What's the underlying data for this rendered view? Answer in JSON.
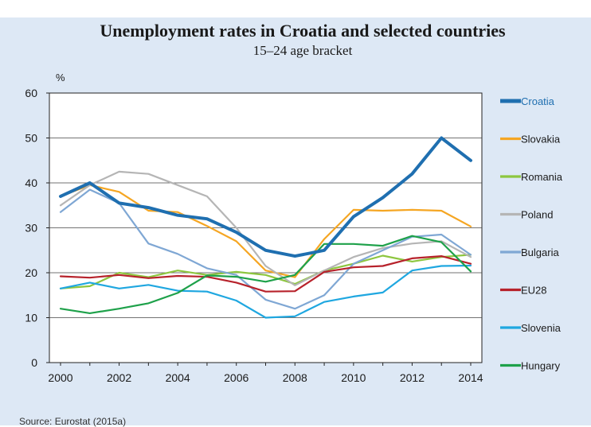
{
  "chart_data": {
    "type": "line",
    "title": "Unemployment rates in Croatia and selected countries",
    "subtitle": "15–24 age bracket",
    "ylabel": "%",
    "xlabel": "",
    "ylim": [
      0,
      60
    ],
    "xlim": [
      2000,
      2014
    ],
    "y_ticks": [
      "0",
      "10",
      "20",
      "30",
      "40",
      "50",
      "60"
    ],
    "x_ticks": [
      "2000",
      "2002",
      "2004",
      "2006",
      "2008",
      "2010",
      "2012",
      "2014"
    ],
    "grid": "horizontal",
    "legend_position": "right",
    "x": [
      2000,
      2001,
      2002,
      2003,
      2004,
      2005,
      2006,
      2007,
      2008,
      2009,
      2010,
      2011,
      2012,
      2013,
      2014
    ],
    "series": [
      {
        "name": "Croatia",
        "color": "#1f6fb0",
        "width": 4,
        "values": [
          37.0,
          40.0,
          35.5,
          34.5,
          32.8,
          32.0,
          29.0,
          25.0,
          23.7,
          25.0,
          32.5,
          36.7,
          42.0,
          50.0,
          45.0
        ]
      },
      {
        "name": "Slovakia",
        "color": "#f5a623",
        "width": 2.2,
        "values": [
          37.0,
          39.5,
          38.0,
          33.8,
          33.5,
          30.4,
          27.0,
          20.5,
          19.0,
          27.5,
          34.0,
          33.8,
          34.0,
          33.8,
          30.3
        ]
      },
      {
        "name": "Romania",
        "color": "#8dc63f",
        "width": 2.2,
        "values": [
          16.5,
          17.0,
          20.0,
          19.0,
          20.5,
          19.5,
          20.2,
          19.5,
          17.5,
          20.5,
          22.0,
          23.8,
          22.5,
          23.5,
          24.0
        ]
      },
      {
        "name": "Poland",
        "color": "#b5b5b5",
        "width": 2.2,
        "values": [
          35.0,
          39.5,
          42.5,
          42.0,
          39.5,
          37.0,
          30.0,
          21.5,
          17.2,
          20.5,
          23.5,
          25.5,
          26.5,
          27.0,
          23.5
        ]
      },
      {
        "name": "Bulgaria",
        "color": "#7fa7d4",
        "width": 2.2,
        "values": [
          33.5,
          38.5,
          35.5,
          26.5,
          24.2,
          21.0,
          19.5,
          14.0,
          12.0,
          15.0,
          22.0,
          25.0,
          28.0,
          28.5,
          24.0
        ]
      },
      {
        "name": "EU28",
        "color": "#b7222b",
        "width": 2.2,
        "values": [
          19.2,
          18.9,
          19.5,
          18.8,
          19.3,
          19.1,
          17.8,
          15.8,
          15.9,
          20.2,
          21.2,
          21.5,
          23.2,
          23.7,
          22.0
        ]
      },
      {
        "name": "Slovenia",
        "color": "#1fa7e0",
        "width": 2.2,
        "values": [
          16.5,
          17.8,
          16.5,
          17.3,
          16.0,
          15.8,
          13.8,
          10.0,
          10.3,
          13.5,
          14.7,
          15.6,
          20.5,
          21.5,
          21.6
        ]
      },
      {
        "name": "Hungary",
        "color": "#1ea14a",
        "width": 2.2,
        "values": [
          12.0,
          11.0,
          12.0,
          13.2,
          15.5,
          19.4,
          19.1,
          18.0,
          19.5,
          26.4,
          26.4,
          26.0,
          28.2,
          26.8,
          20.3
        ]
      }
    ]
  },
  "source": "Source: Eurostat (2015a)"
}
